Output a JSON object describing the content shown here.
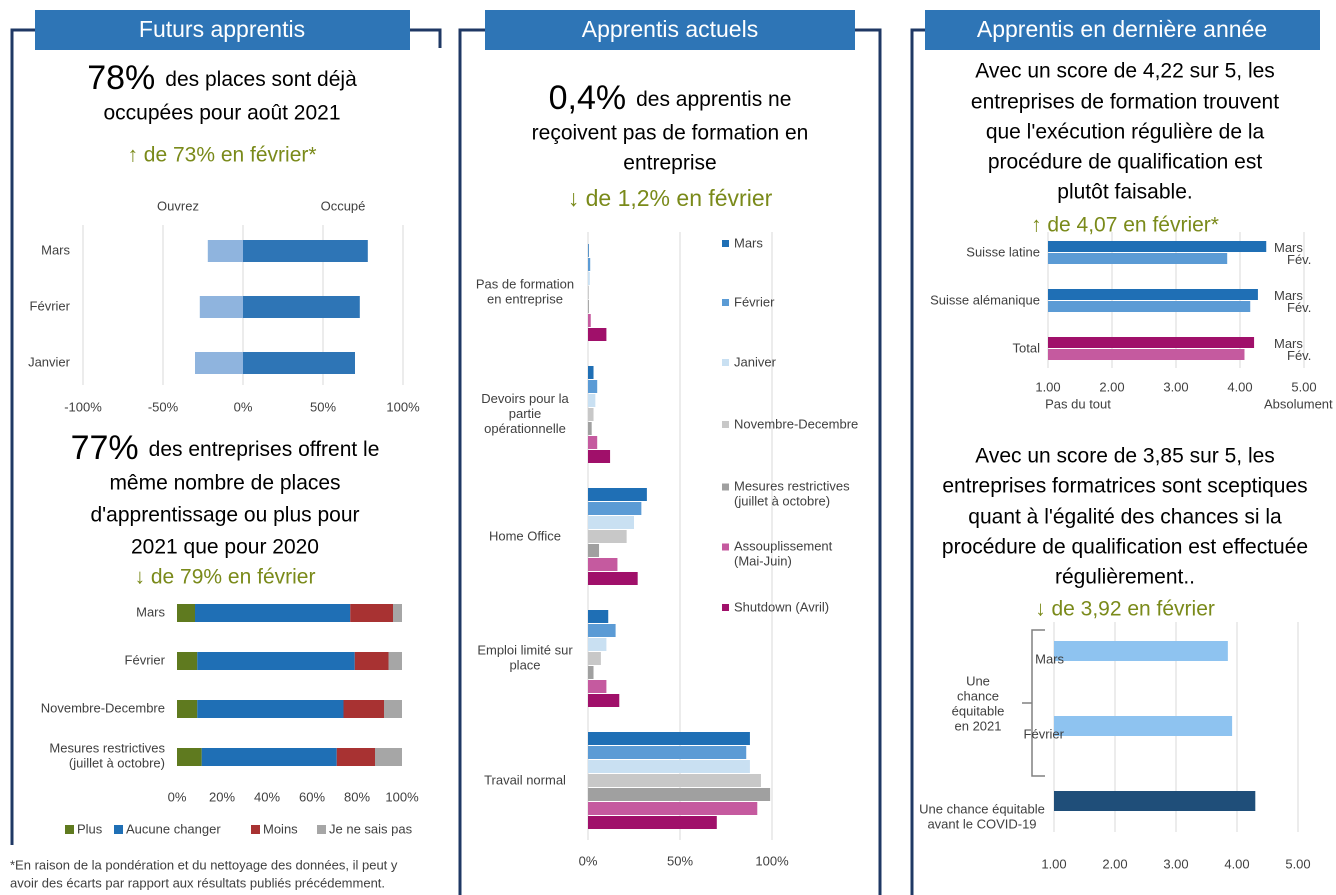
{
  "panel_1": {
    "header": "Futurs apprentis",
    "stat_1": {
      "figure": "78%",
      "lines": [
        "des places sont déjà",
        "occupées pour août 2021"
      ],
      "change": "↑ de 73% en février*"
    },
    "stat_2": {
      "figure": "77%",
      "lines": [
        "des entreprises offrent le",
        "même nombre de places",
        "d'apprentissage ou plus pour",
        "2021 que pour 2020"
      ],
      "change": "↓ de 79% en février"
    },
    "footnote": [
      "*En raison de la pondération et du nettoyage des données, il peut y",
      "avoir des écarts par rapport aux résultats publiés précédemment."
    ]
  },
  "panel_2": {
    "header": "Apprentis actuels",
    "stat_1": {
      "figure": "0,4%",
      "lines": [
        "des apprentis ne",
        "reçoivent pas de formation en",
        "entreprise"
      ],
      "change": "↓ de 1,2% en février"
    }
  },
  "panel_3": {
    "header": "Apprentis en dernière année",
    "stat_1": {
      "lines": [
        "Avec un score de 4,22 sur 5, les",
        "entreprises de formation trouvent",
        "que l'exécution régulière de la",
        "procédure de qualification est",
        "plutôt faisable."
      ],
      "change": "↑ de 4,07 en février*"
    },
    "stat_2": {
      "lines": [
        "Avec un score de 3,85 sur 5, les",
        "entreprises formatrices sont sceptiques",
        "quant à l'égalité des chances si la",
        "procédure de qualification est effectuée",
        "régulièrement.."
      ],
      "change": "↓ de 3,92 en février"
    }
  },
  "chart_data": [
    {
      "type": "diverging_bar",
      "categories": [
        "Mars",
        "Février",
        "Janvier"
      ],
      "series": [
        {
          "name": "Ouvrez",
          "color": "#8fb4de",
          "values": [
            -22,
            -27,
            -30
          ]
        },
        {
          "name": "Occupé",
          "color": "#2e75b6",
          "values": [
            78,
            73,
            70
          ]
        }
      ],
      "xlim": [
        -100,
        100
      ],
      "xticks": [
        {
          "value": -100,
          "label": "-100%"
        },
        {
          "value": -50,
          "label": "-50%"
        },
        {
          "value": 0,
          "label": "0%"
        },
        {
          "value": 50,
          "label": "50%"
        },
        {
          "value": 100,
          "label": "100%"
        }
      ],
      "grid": true
    },
    {
      "type": "stacked_bar",
      "categories": [
        "Mars",
        "Février",
        "Novembre-Decembre",
        "Mesures restrictives\n(juillet à octobre)"
      ],
      "series": [
        {
          "name": "Plus",
          "color": "#5f7a1f",
          "values": [
            8,
            9,
            9,
            11
          ]
        },
        {
          "name": "Aucune changer",
          "color": "#1f6fb5",
          "values": [
            69,
            70,
            65,
            60
          ]
        },
        {
          "name": "Moins",
          "color": "#a83232",
          "values": [
            19,
            15,
            18,
            17
          ]
        },
        {
          "name": "Je ne sais pas",
          "color": "#a6a6a6",
          "values": [
            4,
            6,
            8,
            12
          ]
        }
      ],
      "xlim": [
        0,
        100
      ],
      "xticks": [
        {
          "value": 0,
          "label": "0%"
        },
        {
          "value": 20,
          "label": "20%"
        },
        {
          "value": 40,
          "label": "40%"
        },
        {
          "value": 60,
          "label": "60%"
        },
        {
          "value": 80,
          "label": "80%"
        },
        {
          "value": 100,
          "label": "100%"
        }
      ],
      "grid": false,
      "legend": "bottom"
    },
    {
      "type": "grouped_bar",
      "categories": [
        "Pas de formation\nen entreprise",
        "Devoirs pour la\npartie\nopérationnelle",
        "Home Office",
        "Emploi limité sur\nplace",
        "Travail normal"
      ],
      "series": [
        {
          "name": "Mars",
          "color": "#1f6fb5",
          "values": [
            0.4,
            3,
            32,
            11,
            88
          ]
        },
        {
          "name": "Février",
          "color": "#5b9bd5",
          "values": [
            1.2,
            5,
            29,
            15,
            86
          ]
        },
        {
          "name": "Janiver",
          "color": "#c9e0f2",
          "values": [
            1,
            4,
            25,
            10,
            88
          ]
        },
        {
          "name": "Novembre-Decembre",
          "color": "#c8c8c8",
          "values": [
            0.5,
            3,
            21,
            7,
            94
          ]
        },
        {
          "name": "Mesures restrictives\n(juillet à octobre)",
          "color": "#a0a0a0",
          "values": [
            0.5,
            2,
            6,
            3,
            99
          ]
        },
        {
          "name": "Assouplissement\n(Mai-Juin)",
          "color": "#c55a9f",
          "values": [
            1.5,
            5,
            16,
            10,
            92
          ]
        },
        {
          "name": "Shutdown (Avril)",
          "color": "#a0106a",
          "values": [
            10,
            12,
            27,
            17,
            70
          ]
        }
      ],
      "xlim": [
        0,
        100
      ],
      "xticks": [
        {
          "value": 0,
          "label": "0%"
        },
        {
          "value": 50,
          "label": "50%"
        },
        {
          "value": 100,
          "label": "100%"
        }
      ],
      "grid": true,
      "legend": "right"
    },
    {
      "type": "grouped_bar",
      "categories": [
        "Suisse latine",
        "Suisse alémanique",
        "Total"
      ],
      "series": [
        {
          "name": "Mars",
          "colors": [
            "#1f6fb5",
            "#1f6fb5",
            "#a0106a"
          ],
          "values": [
            4.41,
            4.28,
            4.22
          ]
        },
        {
          "name": "Fév.",
          "colors": [
            "#5b9bd5",
            "#5b9bd5",
            "#c55a9f"
          ],
          "values": [
            3.8,
            4.16,
            4.07
          ]
        }
      ],
      "xlim": [
        1,
        5
      ],
      "xticks": [
        {
          "value": 1,
          "label": "1.00"
        },
        {
          "value": 2,
          "label": "2.00"
        },
        {
          "value": 3,
          "label": "3.00"
        },
        {
          "value": 4,
          "label": "4.00"
        },
        {
          "value": 5,
          "label": "5.00"
        }
      ],
      "grid": true,
      "xlabels": [
        "Pas du tout",
        "Absolument"
      ]
    },
    {
      "type": "bar",
      "categories": [
        "Mars",
        "Février",
        "Une chance équitable\navant le COVID-19"
      ],
      "values": [
        3.85,
        3.92,
        4.3
      ],
      "colors": [
        "#8ec3f0",
        "#8ec3f0",
        "#1f4e79"
      ],
      "group_label": "Une\nchance\néquitable\nen 2021",
      "xlim": [
        1,
        5
      ],
      "xticks": [
        {
          "value": 1,
          "label": "1.00"
        },
        {
          "value": 2,
          "label": "2.00"
        },
        {
          "value": 3,
          "label": "3.00"
        },
        {
          "value": 4,
          "label": "4.00"
        },
        {
          "value": 5,
          "label": "5.00"
        }
      ],
      "grid": true
    }
  ]
}
